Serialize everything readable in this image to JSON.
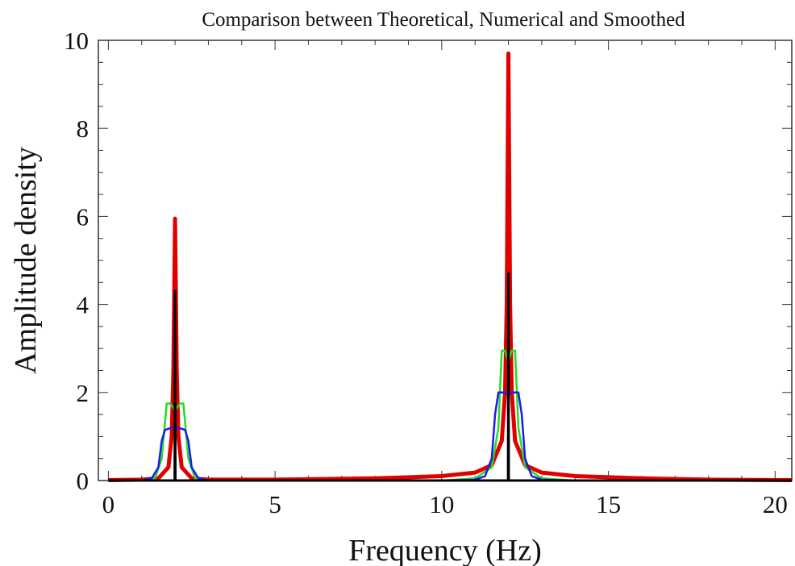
{
  "chart_data": {
    "type": "line",
    "title": "Comparison between Theoretical, Numerical and Smoothed",
    "xlabel": "Frequency (Hz)",
    "ylabel": "Amplitude density",
    "xlim": [
      -0.3,
      20.5
    ],
    "ylim": [
      0,
      10
    ],
    "xticks": [
      0,
      5,
      10,
      15,
      20
    ],
    "xtick_labels": [
      "0",
      "5",
      "10",
      "15",
      "20"
    ],
    "yticks": [
      0,
      2,
      4,
      6,
      8,
      10
    ],
    "ytick_labels": [
      "0",
      "2",
      "4",
      "6",
      "8",
      "10"
    ],
    "grid": false,
    "legend": "none",
    "series": [
      {
        "color": "#e00000",
        "x": [
          0,
          1.0,
          1.5,
          1.8,
          1.9,
          1.95,
          2.0,
          2.05,
          2.1,
          2.2,
          2.5,
          3.0,
          5.0,
          8.0,
          10.0,
          11.0,
          11.5,
          11.8,
          11.9,
          11.95,
          12.0,
          12.05,
          12.1,
          12.2,
          12.5,
          13.0,
          14.0,
          16.0,
          18.0,
          20.5
        ],
        "y": [
          0.01,
          0.02,
          0.05,
          0.3,
          1.0,
          2.5,
          5.95,
          2.5,
          1.0,
          0.3,
          0.05,
          0.02,
          0.02,
          0.05,
          0.1,
          0.18,
          0.35,
          0.9,
          2.0,
          4.0,
          9.7,
          4.0,
          2.0,
          0.9,
          0.35,
          0.18,
          0.1,
          0.05,
          0.02,
          0.01
        ]
      },
      {
        "color": "#22dd22",
        "x": [
          0,
          1.0,
          1.4,
          1.6,
          1.75,
          1.85,
          2.0,
          2.15,
          2.25,
          2.4,
          2.6,
          3.0,
          10.0,
          11.0,
          11.5,
          11.7,
          11.8,
          11.9,
          12.0,
          12.1,
          12.2,
          12.3,
          12.5,
          13.0,
          14.0,
          20.5
        ],
        "y": [
          0.0,
          0.0,
          0.05,
          0.5,
          1.75,
          1.75,
          1.6,
          1.75,
          1.75,
          0.5,
          0.05,
          0.0,
          0.0,
          0.05,
          0.3,
          1.2,
          2.95,
          2.95,
          2.7,
          2.95,
          2.95,
          1.2,
          0.3,
          0.05,
          0.0,
          0.0
        ]
      },
      {
        "color": "#1a1aee",
        "x": [
          0,
          1.0,
          1.3,
          1.5,
          1.6,
          1.7,
          1.9,
          2.0,
          2.1,
          2.3,
          2.4,
          2.5,
          2.7,
          3.0,
          10.0,
          11.0,
          11.3,
          11.5,
          11.6,
          11.7,
          11.9,
          12.0,
          12.1,
          12.3,
          12.4,
          12.5,
          12.7,
          13.0,
          14.0,
          20.5
        ],
        "y": [
          0.0,
          0.0,
          0.05,
          0.3,
          0.9,
          1.15,
          1.2,
          1.15,
          1.2,
          1.15,
          0.9,
          0.3,
          0.05,
          0.0,
          0.0,
          0.02,
          0.1,
          0.5,
          1.5,
          2.0,
          2.0,
          1.95,
          2.0,
          2.0,
          1.5,
          0.5,
          0.1,
          0.02,
          0.0,
          0.0
        ]
      },
      {
        "color": "#000000",
        "x": [
          0,
          1.99,
          2.0,
          2.01,
          11.99,
          12.0,
          12.01,
          20.5
        ],
        "y": [
          0,
          0,
          4.3,
          0,
          0,
          4.7,
          0,
          0
        ]
      }
    ]
  }
}
